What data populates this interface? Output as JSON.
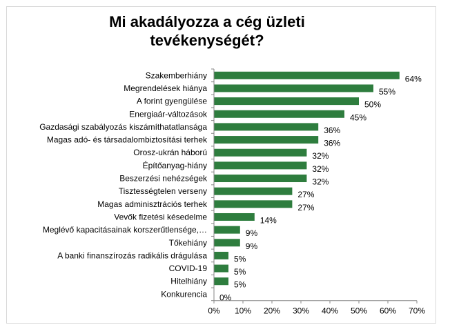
{
  "chart_data": {
    "type": "bar",
    "orientation": "horizontal",
    "title": "Mi akadályozza a cég üzleti tevékenységét?",
    "categories": [
      "Szakemberhiány",
      "Megrendelések hiánya",
      "A forint gyengülése",
      "Energiaár-változások",
      "Gazdasági szabályozás kiszámíthatatlansága",
      "Magas adó- és társadalombiztosítási terhek",
      "Orosz-ukrán háború",
      "Építőanyag-hiány",
      "Beszerzési nehézségek",
      "Tisztességtelen verseny",
      "Magas adminisztrációs terhek",
      "Vevők fizetési késedelme",
      "Meglévő kapacitásainak korszerűtlensége,…",
      "Tőkehiány",
      "A banki finanszírozás radikális drágulása",
      "COVID-19",
      "Hitelhiány",
      "Konkurencia"
    ],
    "values": [
      64,
      55,
      50,
      45,
      36,
      36,
      32,
      32,
      32,
      27,
      27,
      14,
      9,
      9,
      5,
      5,
      5,
      0
    ],
    "data_labels": [
      "64%",
      "55%",
      "50%",
      "45%",
      "36%",
      "36%",
      "32%",
      "32%",
      "32%",
      "27%",
      "27%",
      "14%",
      "9%",
      "9%",
      "5%",
      "5%",
      "5%",
      "0%"
    ],
    "x_ticks": [
      0,
      10,
      20,
      30,
      40,
      50,
      60,
      70
    ],
    "x_tick_labels": [
      "0%",
      "10%",
      "20%",
      "30%",
      "40%",
      "50%",
      "60%",
      "70%"
    ],
    "xlim": [
      0,
      70
    ],
    "xlabel": "",
    "ylabel": "",
    "grid": false,
    "legend": "none",
    "bar_color": "#2e7d3e"
  }
}
